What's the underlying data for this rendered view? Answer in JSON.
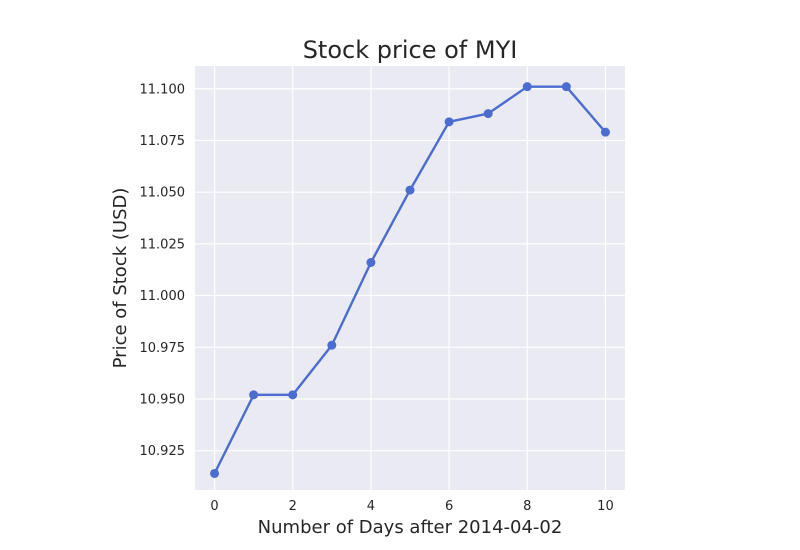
{
  "chart_data": {
    "type": "line",
    "title": "Stock price of MYI",
    "xlabel": "Number of Days after 2014-04-02",
    "ylabel": "Price of Stock (USD)",
    "x": [
      0,
      1,
      2,
      3,
      4,
      5,
      6,
      7,
      8,
      9,
      10
    ],
    "series": [
      {
        "values": [
          10.914,
          10.952,
          10.952,
          10.976,
          11.016,
          11.051,
          11.084,
          11.088,
          11.101,
          11.101,
          11.079
        ]
      }
    ],
    "xlim": [
      -0.5,
      10.5
    ],
    "ylim": [
      10.906,
      11.111
    ],
    "xticks": [
      0,
      2,
      4,
      6,
      8,
      10
    ],
    "xtick_labels": [
      "0",
      "2",
      "4",
      "6",
      "8",
      "10"
    ],
    "yticks": [
      10.925,
      10.95,
      10.975,
      11.0,
      11.025,
      11.05,
      11.075,
      11.1
    ],
    "ytick_labels": [
      "10.925",
      "10.950",
      "10.975",
      "11.000",
      "11.025",
      "11.050",
      "11.075",
      "11.100"
    ],
    "grid": true,
    "colors": {
      "line": "#4C6CD0",
      "background": "#EAEAF2",
      "grid": "#FFFFFF"
    }
  }
}
